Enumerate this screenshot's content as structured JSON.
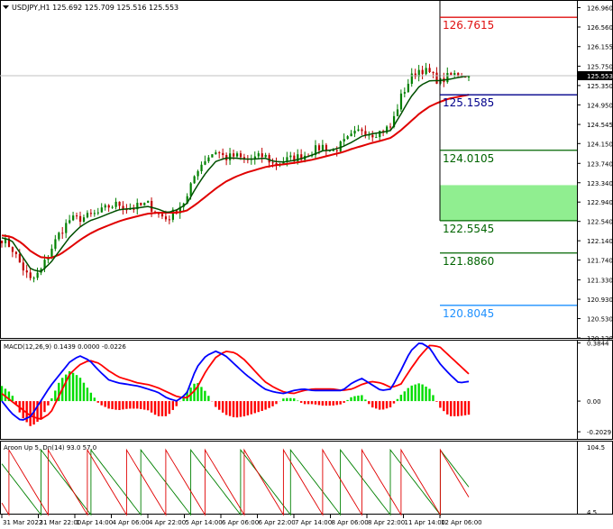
{
  "chart_data": [
    {
      "type": "candlestick",
      "title": "USDJPY,H1  125.692 125.709 125.516 125.553",
      "ylim": [
        120.13,
        127.1
      ],
      "yticks": [
        "126.960",
        "126.560",
        "126.155",
        "125.750",
        "125.553",
        "125.350",
        "124.950",
        "124.545",
        "124.150",
        "123.740",
        "123.340",
        "122.940",
        "122.540",
        "122.140",
        "121.740",
        "121.330",
        "120.930",
        "120.530",
        "120.130"
      ],
      "last_price": 125.553,
      "levels": [
        {
          "value": 126.7615,
          "label": "126.7615",
          "color": "#e01010"
        },
        {
          "value": 125.1585,
          "label": "125.1585",
          "color": "#00008b"
        },
        {
          "value": 124.0105,
          "label": "124.0105",
          "color": "#006400"
        },
        {
          "value": 122.5545,
          "label": "122.5545",
          "color": "#006400"
        },
        {
          "value": 121.886,
          "label": "121.8860",
          "color": "#006400"
        },
        {
          "value": 120.8045,
          "label": "120.8045",
          "color": "#1e90ff"
        }
      ],
      "zone": {
        "from": 122.5545,
        "to": 123.29,
        "color": "#90ee90"
      },
      "xticks": [
        "31 Mar 2022",
        "31 Mar 22:00",
        "1 Apr 14:00",
        "4 Apr 06:00",
        "4 Apr 22:00",
        "5 Apr 14:00",
        "6 Apr 06:00",
        "6 Apr 22:00",
        "7 Apr 14:00",
        "8 Apr 06:00",
        "8 Apr 22:00",
        "11 Apr 14:00",
        "12 Apr 06:00"
      ],
      "price_path": [
        122.18,
        122.0,
        121.62,
        121.3,
        121.52,
        121.95,
        122.32,
        122.58,
        122.6,
        122.65,
        122.72,
        122.85,
        122.9,
        122.8,
        122.85,
        122.9,
        122.7,
        122.58,
        122.8,
        123.0,
        123.6,
        123.85,
        124.0,
        123.85,
        123.9,
        123.8,
        123.85,
        123.9,
        123.7,
        123.8,
        123.85,
        123.9,
        124.0,
        124.1,
        123.98,
        124.15,
        124.3,
        124.45,
        124.35,
        124.4,
        124.5,
        125.1,
        125.5,
        125.7,
        125.6,
        125.42,
        125.55,
        125.6,
        125.55
      ],
      "sma_fast": [
        122.2,
        122.15,
        121.85,
        121.55,
        121.5,
        121.68,
        121.95,
        122.22,
        122.42,
        122.55,
        122.62,
        122.7,
        122.78,
        122.8,
        122.82,
        122.85,
        122.8,
        122.72,
        122.78,
        122.9,
        123.25,
        123.55,
        123.78,
        123.85,
        123.85,
        123.83,
        123.83,
        123.85,
        123.78,
        123.77,
        123.8,
        123.85,
        123.92,
        124.0,
        124.02,
        124.08,
        124.18,
        124.3,
        124.35,
        124.38,
        124.42,
        124.75,
        125.1,
        125.35,
        125.45,
        125.45,
        125.48,
        125.52,
        125.55
      ],
      "sma_slow": [
        122.25,
        122.22,
        122.1,
        121.92,
        121.8,
        121.78,
        121.86,
        122.0,
        122.15,
        122.28,
        122.38,
        122.46,
        122.54,
        122.6,
        122.65,
        122.7,
        122.72,
        122.72,
        122.72,
        122.76,
        122.9,
        123.06,
        123.22,
        123.36,
        123.46,
        123.54,
        123.6,
        123.66,
        123.7,
        123.72,
        123.75,
        123.78,
        123.82,
        123.87,
        123.92,
        123.97,
        124.04,
        124.1,
        124.16,
        124.21,
        124.27,
        124.42,
        124.6,
        124.78,
        124.92,
        125.01,
        125.08,
        125.12,
        125.16
      ]
    },
    {
      "type": "macd",
      "title": "MACD(12,26,9) 0.1439 0.0000 -0.0226",
      "ylim": [
        -0.25,
        0.4
      ],
      "yticks": [
        "0.3844",
        "0.00",
        "-0.2029"
      ],
      "histogram": [
        0.1,
        0.05,
        -0.1,
        -0.17,
        -0.12,
        0.0,
        0.14,
        0.2,
        0.16,
        0.07,
        -0.02,
        -0.05,
        -0.06,
        -0.05,
        -0.05,
        -0.06,
        -0.1,
        -0.1,
        -0.03,
        0.06,
        0.13,
        0.06,
        -0.04,
        -0.09,
        -0.11,
        -0.1,
        -0.08,
        -0.06,
        -0.03,
        0.02,
        0.02,
        -0.02,
        -0.02,
        -0.03,
        -0.03,
        -0.02,
        0.03,
        0.04,
        -0.04,
        -0.06,
        -0.04,
        0.04,
        0.1,
        0.12,
        0.08,
        -0.04,
        -0.1,
        -0.1,
        -0.09
      ],
      "macd_line": [
        0.0,
        -0.08,
        -0.13,
        -0.1,
        0.0,
        0.1,
        0.18,
        0.26,
        0.3,
        0.27,
        0.2,
        0.14,
        0.12,
        0.11,
        0.1,
        0.08,
        0.06,
        0.02,
        0.0,
        0.05,
        0.22,
        0.3,
        0.33,
        0.3,
        0.24,
        0.18,
        0.13,
        0.08,
        0.06,
        0.05,
        0.07,
        0.08,
        0.07,
        0.07,
        0.07,
        0.07,
        0.12,
        0.15,
        0.11,
        0.07,
        0.08,
        0.2,
        0.33,
        0.39,
        0.35,
        0.25,
        0.18,
        0.12,
        0.13
      ],
      "signal_line": [
        0.05,
        0.0,
        -0.05,
        -0.1,
        -0.12,
        -0.08,
        0.05,
        0.18,
        0.24,
        0.27,
        0.25,
        0.2,
        0.16,
        0.14,
        0.12,
        0.11,
        0.09,
        0.06,
        0.03,
        0.02,
        0.08,
        0.2,
        0.29,
        0.33,
        0.32,
        0.27,
        0.2,
        0.13,
        0.09,
        0.06,
        0.05,
        0.07,
        0.08,
        0.08,
        0.08,
        0.07,
        0.08,
        0.11,
        0.13,
        0.12,
        0.09,
        0.11,
        0.21,
        0.3,
        0.37,
        0.36,
        0.3,
        0.24,
        0.18
      ]
    },
    {
      "type": "aroon",
      "title": "Aroon Up 5, Dn(14) 93.0 57.0",
      "ylim": [
        4.5,
        104.5
      ],
      "yticks": [
        "104.5",
        "4.5"
      ]
    }
  ]
}
